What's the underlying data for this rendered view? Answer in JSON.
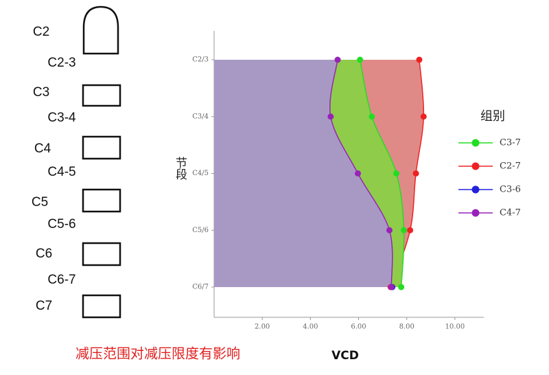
{
  "diagram": {
    "labels": [
      "C2",
      "C2-3",
      "C3",
      "C3-4",
      "C4",
      "C4-5",
      "C5",
      "C5-6",
      "C6",
      "C6-7",
      "C7"
    ],
    "caption": "减压范围对减压限度有影响"
  },
  "chart_data": {
    "type": "area",
    "x_label": "VCD",
    "y_label": "节段",
    "legend_title": "组别",
    "categories": [
      "C2/3",
      "C3/4",
      "C4/5",
      "C5/6",
      "C6/7"
    ],
    "xlim": [
      0,
      11.2
    ],
    "xticks": [
      {
        "value": 2,
        "label": "2.00"
      },
      {
        "value": 4,
        "label": "4.00"
      },
      {
        "value": 6,
        "label": "6.00"
      },
      {
        "value": 8,
        "label": "8.00"
      },
      {
        "value": 10,
        "label": "10.00"
      }
    ],
    "series": [
      {
        "name": "C3-7",
        "color": "#22dd22",
        "fill": "#8fcc4a",
        "values": [
          6.06,
          6.55,
          7.57,
          7.88,
          7.77
        ]
      },
      {
        "name": "C2-7",
        "color": "#ee2222",
        "fill": "#e08a88",
        "values": [
          8.52,
          8.7,
          8.38,
          8.14,
          7.33
        ]
      },
      {
        "name": "C3-6",
        "color": "#2222dd",
        "fill": "#8a8ad8",
        "values": [
          null,
          null,
          null,
          null,
          7.4
        ]
      },
      {
        "name": "C4-7",
        "color": "#9922bb",
        "fill": "#a899c4",
        "values": [
          5.13,
          4.84,
          5.97,
          7.28,
          7.36
        ]
      }
    ]
  }
}
